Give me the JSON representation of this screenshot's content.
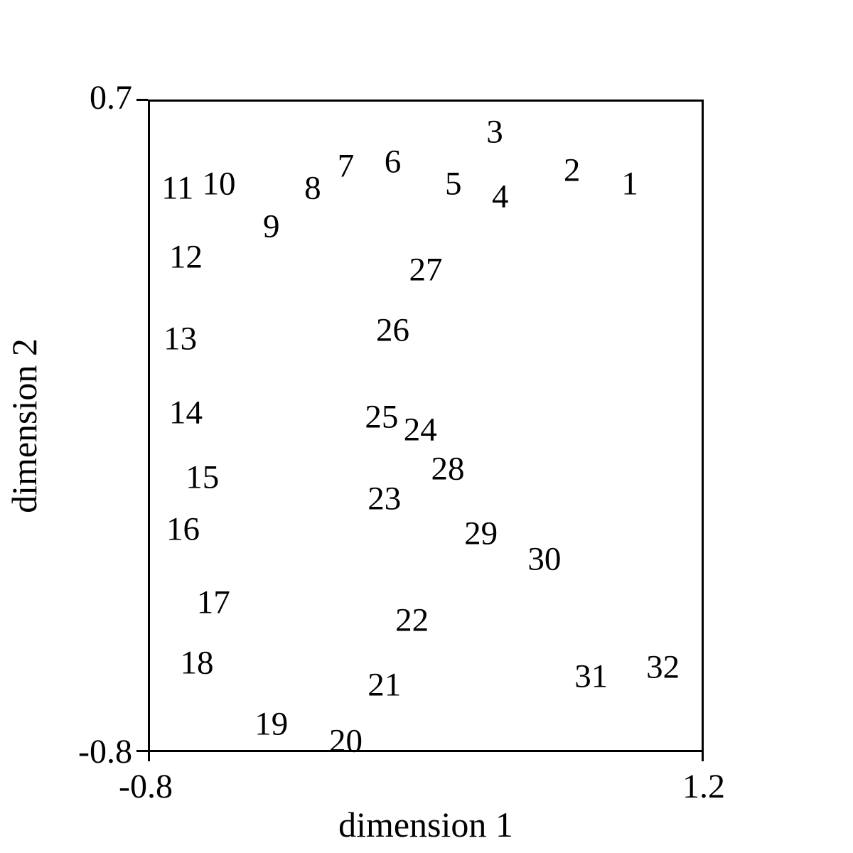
{
  "figure": {
    "background_color": "#ffffff",
    "text_color": "#000000",
    "frame": "full-box",
    "title": ""
  },
  "chart_data": {
    "type": "scatter",
    "marker_style": "numeric-text-labels",
    "title": "",
    "xlabel": "dimension 1",
    "ylabel": "dimension 2",
    "xlim": [
      -0.8,
      1.2
    ],
    "ylim": [
      -0.8,
      0.7
    ],
    "grid": false,
    "legend": false,
    "x_ticks": [
      {
        "value": -0.8,
        "label": "-0.8"
      },
      {
        "value": 1.2,
        "label": "1.2"
      }
    ],
    "y_ticks": [
      {
        "value": 0.7,
        "label": "0.7"
      },
      {
        "value": -0.8,
        "label": "-0.8"
      }
    ],
    "points": [
      {
        "label": "1",
        "x": 0.94,
        "y": 0.51
      },
      {
        "label": "2",
        "x": 0.73,
        "y": 0.54
      },
      {
        "label": "3",
        "x": 0.45,
        "y": 0.63
      },
      {
        "label": "4",
        "x": 0.47,
        "y": 0.48
      },
      {
        "label": "5",
        "x": 0.3,
        "y": 0.51
      },
      {
        "label": "6",
        "x": 0.08,
        "y": 0.56
      },
      {
        "label": "7",
        "x": -0.09,
        "y": 0.55
      },
      {
        "label": "8",
        "x": -0.21,
        "y": 0.5
      },
      {
        "label": "9",
        "x": -0.36,
        "y": 0.41
      },
      {
        "label": "10",
        "x": -0.55,
        "y": 0.51
      },
      {
        "label": "11",
        "x": -0.7,
        "y": 0.5
      },
      {
        "label": "12",
        "x": -0.67,
        "y": 0.34
      },
      {
        "label": "13",
        "x": -0.69,
        "y": 0.15
      },
      {
        "label": "14",
        "x": -0.67,
        "y": -0.02
      },
      {
        "label": "15",
        "x": -0.61,
        "y": -0.17
      },
      {
        "label": "16",
        "x": -0.68,
        "y": -0.29
      },
      {
        "label": "17",
        "x": -0.57,
        "y": -0.46
      },
      {
        "label": "18",
        "x": -0.63,
        "y": -0.6
      },
      {
        "label": "19",
        "x": -0.36,
        "y": -0.74
      },
      {
        "label": "20",
        "x": -0.09,
        "y": -0.78
      },
      {
        "label": "21",
        "x": 0.05,
        "y": -0.65
      },
      {
        "label": "22",
        "x": 0.15,
        "y": -0.5
      },
      {
        "label": "23",
        "x": 0.05,
        "y": -0.22
      },
      {
        "label": "24",
        "x": 0.18,
        "y": -0.06
      },
      {
        "label": "25",
        "x": 0.04,
        "y": -0.03
      },
      {
        "label": "26",
        "x": 0.08,
        "y": 0.17
      },
      {
        "label": "27",
        "x": 0.2,
        "y": 0.31
      },
      {
        "label": "28",
        "x": 0.28,
        "y": -0.15
      },
      {
        "label": "29",
        "x": 0.4,
        "y": -0.3
      },
      {
        "label": "30",
        "x": 0.63,
        "y": -0.36
      },
      {
        "label": "31",
        "x": 0.8,
        "y": -0.63
      },
      {
        "label": "32",
        "x": 1.06,
        "y": -0.61
      }
    ]
  }
}
